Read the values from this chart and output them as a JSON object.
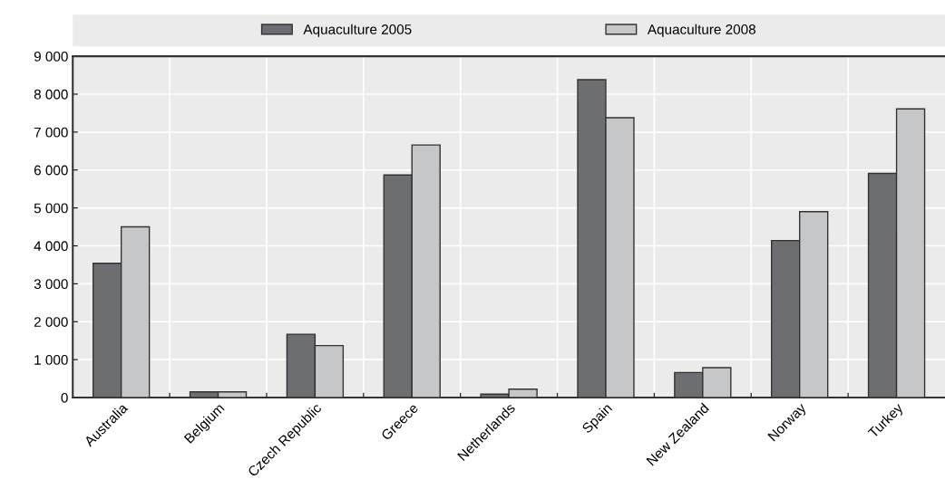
{
  "chart_data": {
    "type": "bar",
    "categories": [
      "Australia",
      "Belgium",
      "Czech Republic",
      "Greece",
      "Netherlands",
      "Spain",
      "New Zealand",
      "Norway",
      "Turkey"
    ],
    "series": [
      {
        "name": "Aquaculture 2005",
        "color": "#6d6e71",
        "values": [
          3540,
          150,
          1670,
          5870,
          90,
          8380,
          660,
          4140,
          5910
        ]
      },
      {
        "name": "Aquaculture 2008",
        "color": "#c6c7c9",
        "values": [
          4500,
          150,
          1370,
          6660,
          220,
          7380,
          790,
          4900,
          7610
        ]
      }
    ],
    "ylim": [
      0,
      9000
    ],
    "yticks": [
      {
        "value": 0,
        "label": "0"
      },
      {
        "value": 1000,
        "label": "1 000"
      },
      {
        "value": 2000,
        "label": "2 000"
      },
      {
        "value": 3000,
        "label": "3 000"
      },
      {
        "value": 4000,
        "label": "4 000"
      },
      {
        "value": 5000,
        "label": "5 000"
      },
      {
        "value": 6000,
        "label": "6 000"
      },
      {
        "value": 7000,
        "label": "7 000"
      },
      {
        "value": 8000,
        "label": "8 000"
      },
      {
        "value": 9000,
        "label": "9 000"
      }
    ],
    "grid": true,
    "legend": "top"
  }
}
